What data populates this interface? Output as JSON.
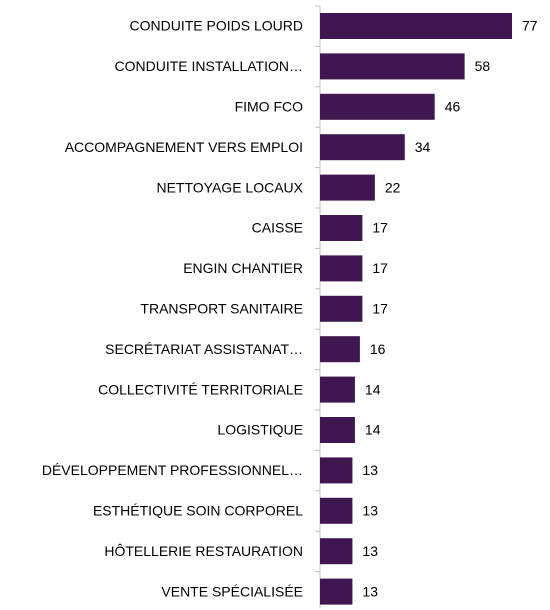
{
  "chart_data": {
    "type": "bar",
    "orientation": "horizontal",
    "categories": [
      "CONDUITE POIDS LOURD",
      "CONDUITE INSTALLATION…",
      "FIMO FCO",
      "ACCOMPAGNEMENT VERS EMPLOI",
      "NETTOYAGE LOCAUX",
      "CAISSE",
      "ENGIN CHANTIER",
      "TRANSPORT SANITAIRE",
      "SECRÉTARIAT ASSISTANAT…",
      "COLLECTIVITÉ TERRITORIALE",
      "LOGISTIQUE",
      "DÉVELOPPEMENT PROFESSIONNEL…",
      "ESTHÉTIQUE SOIN CORPOREL",
      "HÔTELLERIE RESTAURATION",
      "VENTE SPÉCIALISÉE"
    ],
    "values": [
      77,
      58,
      46,
      34,
      22,
      17,
      17,
      17,
      16,
      14,
      14,
      13,
      13,
      13,
      13
    ],
    "color": "#3f1650"
  }
}
